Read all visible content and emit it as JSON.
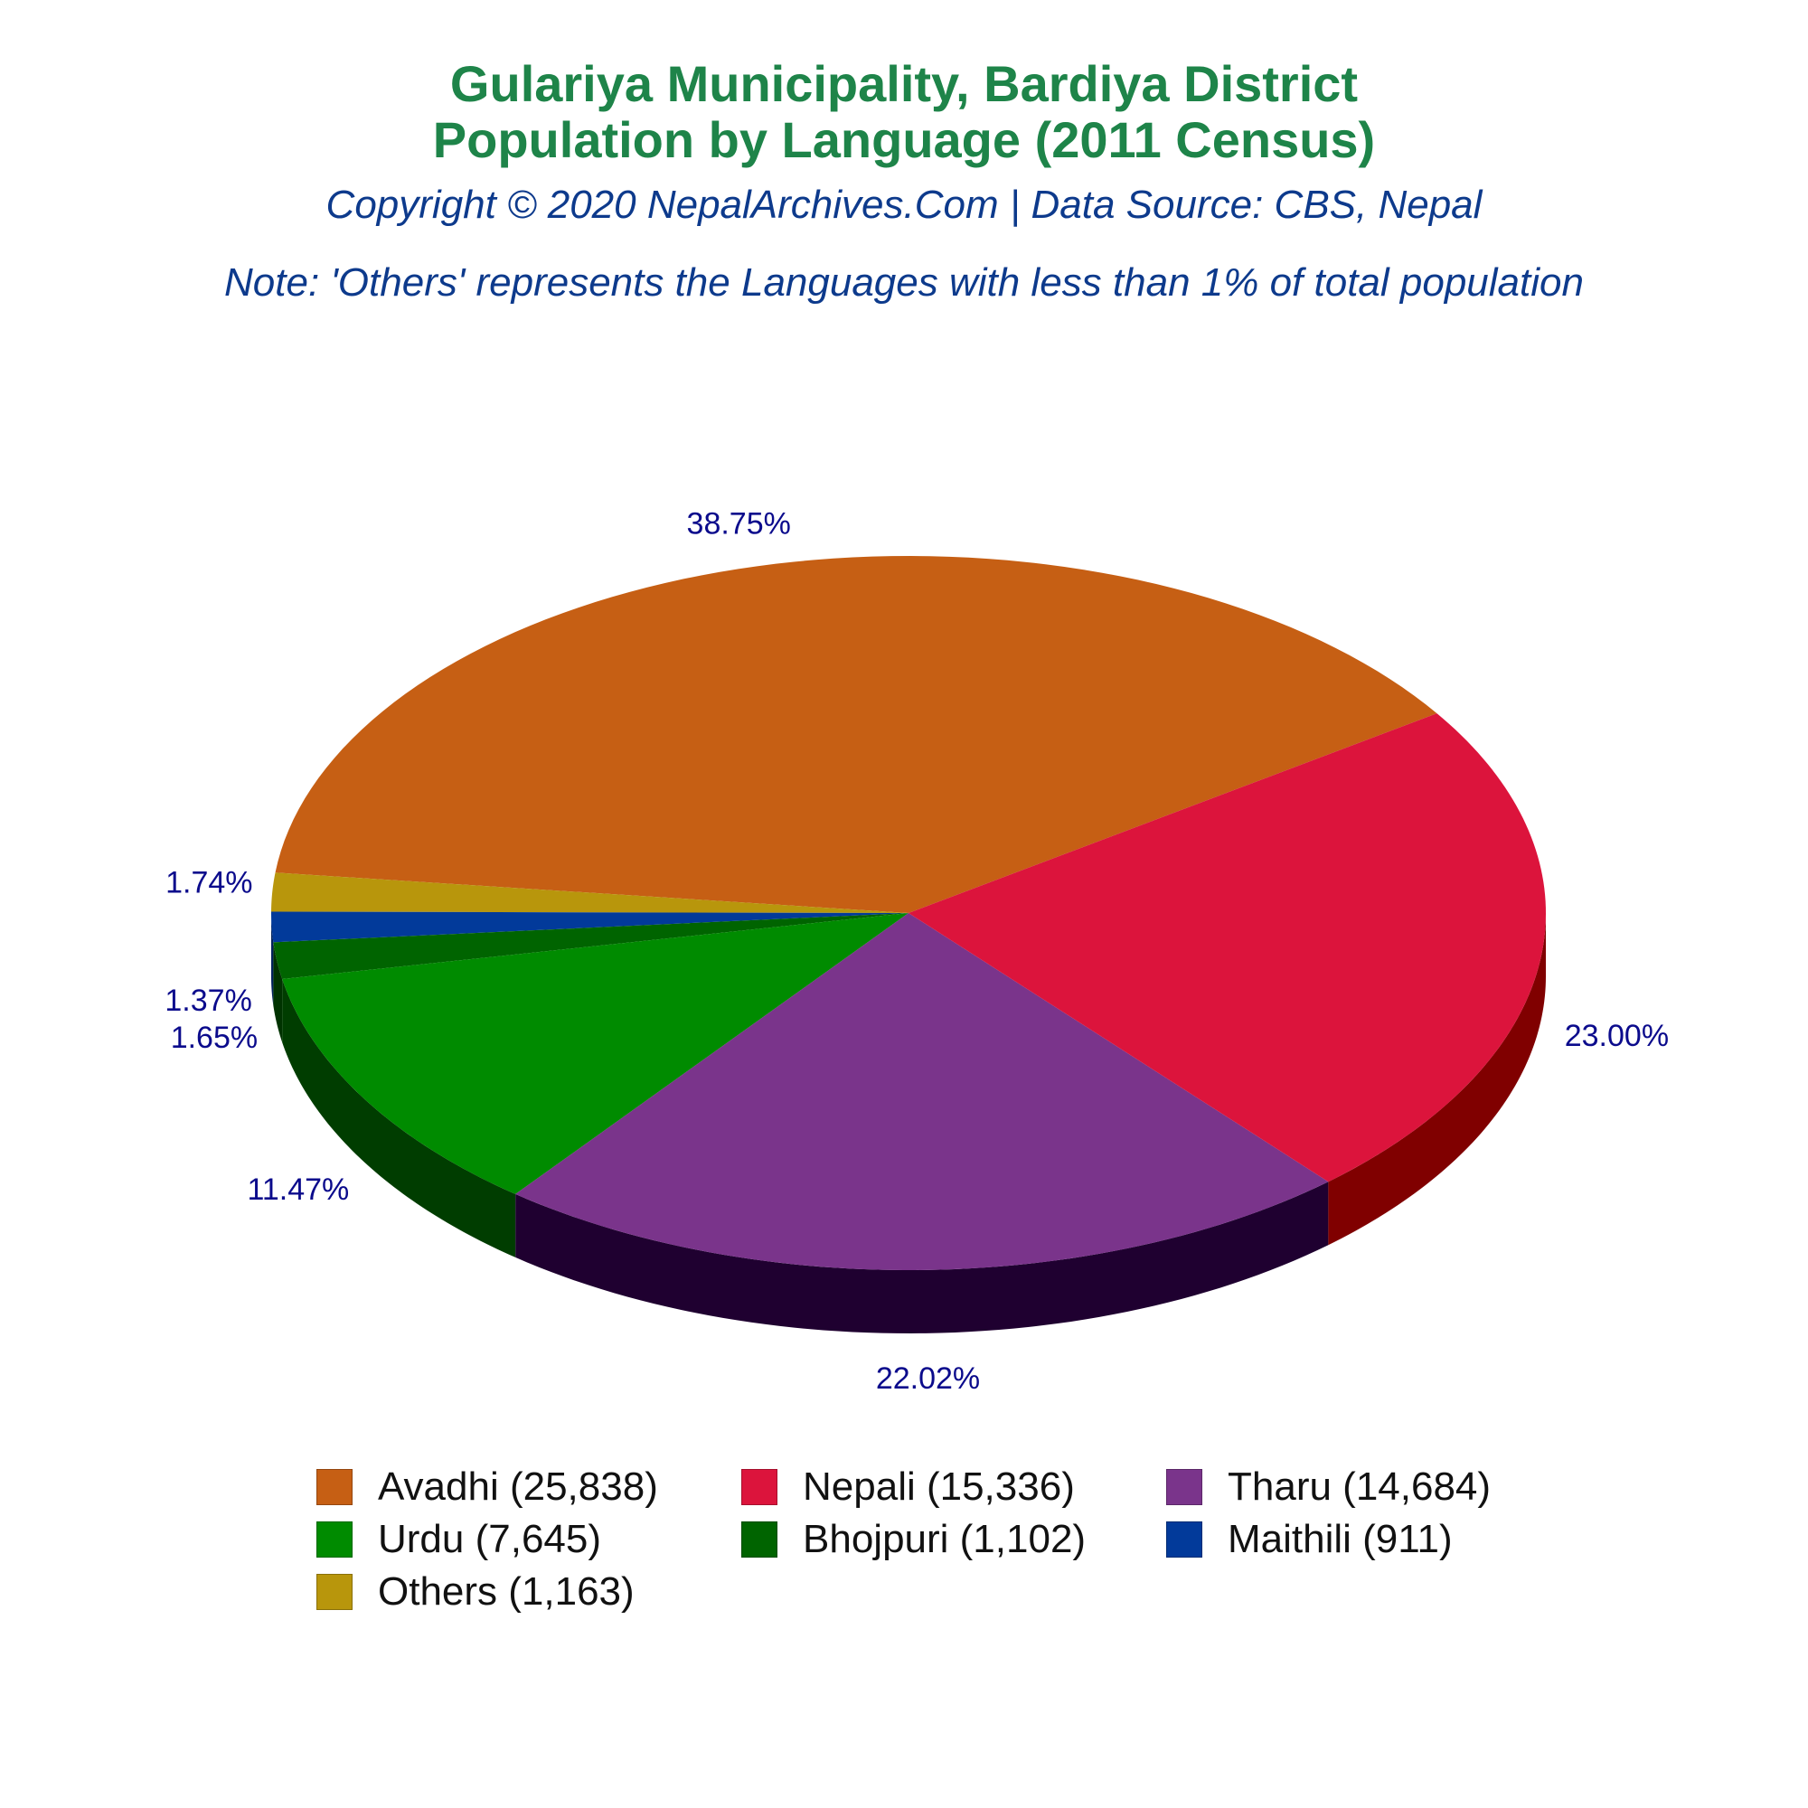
{
  "header": {
    "title_line1": "Gulariya Municipality, Bardiya District",
    "title_line2": "Population by Language (2011 Census)",
    "subtitle": "Copyright © 2020 NepalArchives.Com | Data Source: CBS, Nepal",
    "note": "Note: 'Others' represents the Languages with less than 1% of total population"
  },
  "chart_data": {
    "type": "pie",
    "style": "3d",
    "legend_position": "bottom",
    "label_color": "#0b0b8c",
    "slices": [
      {
        "name": "Avadhi",
        "value": 25838,
        "percent": 38.75,
        "percent_label": "38.75%",
        "legend_label": "Avadhi (25,838)",
        "color": "#c65f14",
        "side_color": "#7a3a0c"
      },
      {
        "name": "Others",
        "value": 1163,
        "percent": 1.74,
        "percent_label": "1.74%",
        "legend_label": "Others (1,163)",
        "color": "#b8960c",
        "side_color": "#6e5a07"
      },
      {
        "name": "Maithili",
        "value": 911,
        "percent": 1.37,
        "percent_label": "1.37%",
        "legend_label": "Maithili (911)",
        "color": "#023a9a",
        "side_color": "#01225c"
      },
      {
        "name": "Bhojpuri",
        "value": 1102,
        "percent": 1.65,
        "percent_label": "1.65%",
        "legend_label": "Bhojpuri (1,102)",
        "color": "#006400",
        "side_color": "#003300"
      },
      {
        "name": "Urdu",
        "value": 7645,
        "percent": 11.47,
        "percent_label": "11.47%",
        "legend_label": "Urdu (7,645)",
        "color": "#008b00",
        "side_color": "#003d00"
      },
      {
        "name": "Tharu",
        "value": 14684,
        "percent": 22.02,
        "percent_label": "22.02%",
        "legend_label": "Tharu (14,684)",
        "color": "#7a348b",
        "side_color": "#1f0030"
      },
      {
        "name": "Nepali",
        "value": 15336,
        "percent": 23.0,
        "percent_label": "23.00%",
        "legend_label": "Nepali (15,336)",
        "color": "#dc143c",
        "side_color": "#800000"
      }
    ],
    "legend_order": [
      "Avadhi",
      "Nepali",
      "Tharu",
      "Urdu",
      "Bhojpuri",
      "Maithili",
      "Others"
    ]
  }
}
